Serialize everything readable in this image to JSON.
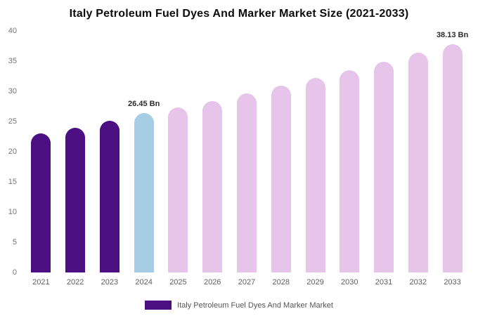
{
  "chart_data": {
    "type": "bar",
    "title": "Italy Petroleum Fuel Dyes And Marker Market Size (2021-2033)",
    "categories": [
      "2021",
      "2022",
      "2023",
      "2024",
      "2025",
      "2026",
      "2027",
      "2028",
      "2029",
      "2030",
      "2031",
      "2032",
      "2033"
    ],
    "values": [
      23.0,
      24.0,
      25.1,
      26.45,
      27.3,
      28.4,
      29.6,
      30.9,
      32.2,
      33.5,
      34.9,
      36.4,
      38.13
    ],
    "unit": "Bn",
    "xlabel": "",
    "ylabel": "",
    "ylim": [
      0,
      40
    ],
    "yticks": [
      0,
      5,
      10,
      15,
      20,
      25,
      30,
      35,
      40
    ],
    "grid": false,
    "legend": {
      "label": "Italy Petroleum Fuel Dyes And Marker Market",
      "position": "bottom",
      "color": "#4b0f82"
    },
    "colors": [
      "#4b0f82",
      "#4b0f82",
      "#4b0f82",
      "#a6cde4",
      "#e7c4ea",
      "#e7c4ea",
      "#e7c4ea",
      "#e7c4ea",
      "#e7c4ea",
      "#e7c4ea",
      "#e7c4ea",
      "#e7c4ea",
      "#e7c4ea"
    ],
    "annotations": [
      {
        "index": 3,
        "text": "26.45 Bn"
      },
      {
        "index": 12,
        "text": "38.13 Bn"
      }
    ]
  }
}
